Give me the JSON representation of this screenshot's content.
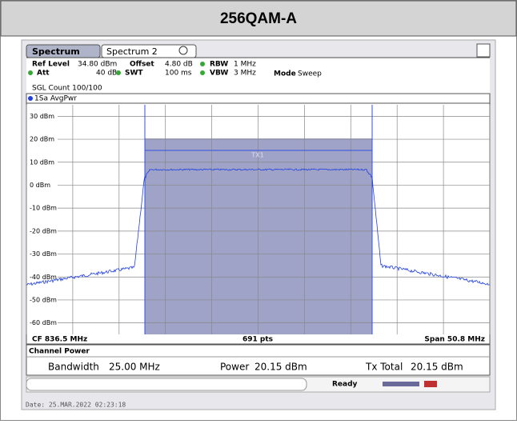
{
  "header": {
    "title": "256QAM-A"
  },
  "tabs": [
    "Spectrum",
    "Spectrum 2"
  ],
  "settings": {
    "ref_level": {
      "label": "Ref Level",
      "value": "34.80 dBm"
    },
    "offset": {
      "label": "Offset",
      "value": "4.80 dB"
    },
    "rbw": {
      "label": "RBW",
      "value": "1 MHz"
    },
    "att": {
      "label": "Att",
      "value": "40 dB"
    },
    "swt": {
      "label": "SWT",
      "value": "100 ms"
    },
    "vbw": {
      "label": "VBW",
      "value": "3 MHz"
    },
    "mode": {
      "label": "Mode",
      "value": "Sweep"
    },
    "sgl_count": "SGL Count 100/100"
  },
  "plot": {
    "trace_label": "1Sa AvgPwr",
    "y_labels": [
      "30 dBm",
      "20 dBm",
      "10 dBm",
      "0 dBm",
      "-10 dBm",
      "-20 dBm",
      "-30 dBm",
      "-40 dBm",
      "-50 dBm",
      "-60 dBm"
    ],
    "channel": "TX1",
    "cf": "CF 836.5 MHz",
    "points": "691 pts",
    "span": "Span 50.8 MHz"
  },
  "channel_power": {
    "title": "Channel Power",
    "bandwidth": {
      "label": "Bandwidth",
      "value": "25.00 MHz"
    },
    "power": {
      "label": "Power",
      "value": "20.15 dBm"
    },
    "tx_total": {
      "label": "Tx Total",
      "value": "20.15 dBm"
    }
  },
  "status": "Ready",
  "date": "Date: 25.MAR.2022  02:23:18"
}
